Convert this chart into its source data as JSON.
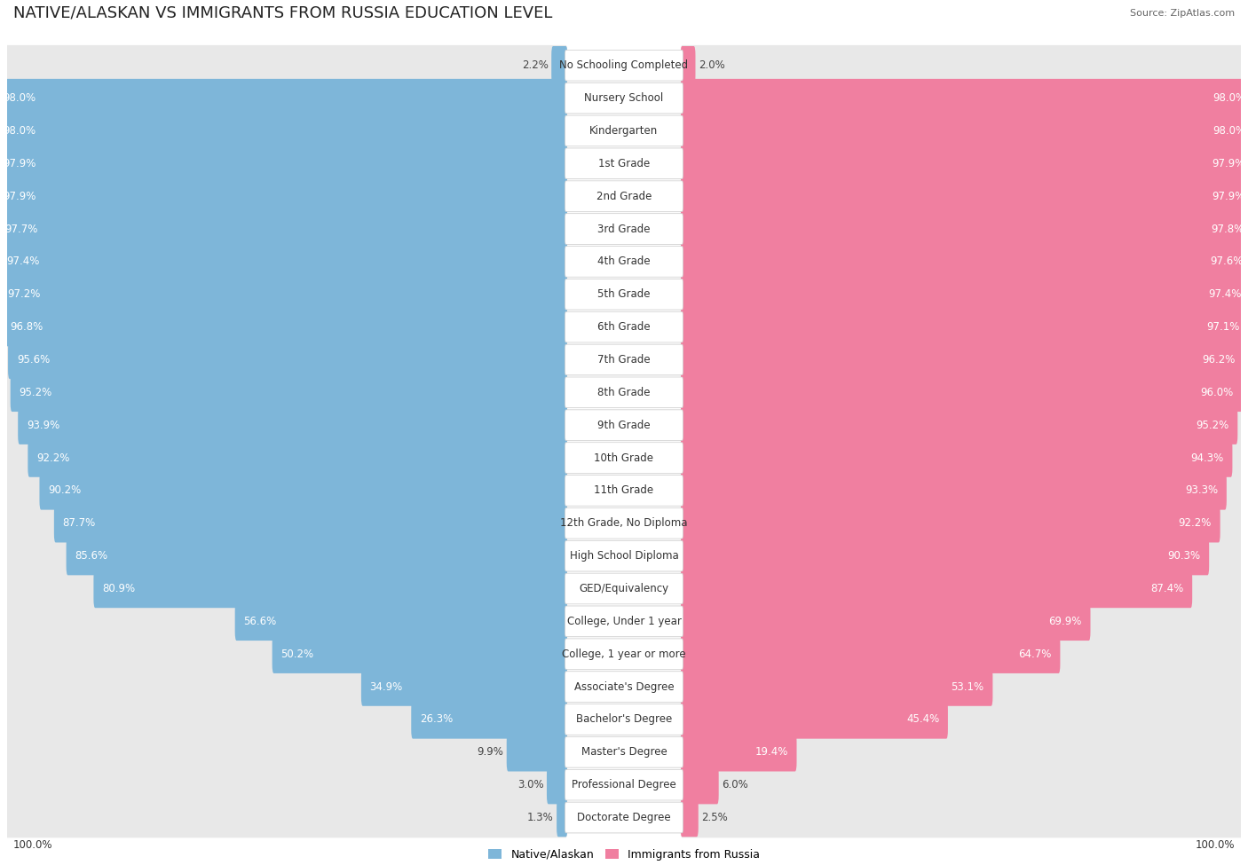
{
  "title": "NATIVE/ALASKAN VS IMMIGRANTS FROM RUSSIA EDUCATION LEVEL",
  "source": "Source: ZipAtlas.com",
  "categories": [
    "No Schooling Completed",
    "Nursery School",
    "Kindergarten",
    "1st Grade",
    "2nd Grade",
    "3rd Grade",
    "4th Grade",
    "5th Grade",
    "6th Grade",
    "7th Grade",
    "8th Grade",
    "9th Grade",
    "10th Grade",
    "11th Grade",
    "12th Grade, No Diploma",
    "High School Diploma",
    "GED/Equivalency",
    "College, Under 1 year",
    "College, 1 year or more",
    "Associate's Degree",
    "Bachelor's Degree",
    "Master's Degree",
    "Professional Degree",
    "Doctorate Degree"
  ],
  "native_values": [
    2.2,
    98.0,
    98.0,
    97.9,
    97.9,
    97.7,
    97.4,
    97.2,
    96.8,
    95.6,
    95.2,
    93.9,
    92.2,
    90.2,
    87.7,
    85.6,
    80.9,
    56.6,
    50.2,
    34.9,
    26.3,
    9.9,
    3.0,
    1.3
  ],
  "russia_values": [
    2.0,
    98.0,
    98.0,
    97.9,
    97.9,
    97.8,
    97.6,
    97.4,
    97.1,
    96.2,
    96.0,
    95.2,
    94.3,
    93.3,
    92.2,
    90.3,
    87.4,
    69.9,
    64.7,
    53.1,
    45.4,
    19.4,
    6.0,
    2.5
  ],
  "native_color": "#7eb6d9",
  "russia_color": "#f07fa0",
  "track_color": "#e8e8e8",
  "row_bg_even": "#ffffff",
  "row_bg_odd": "#f7f7f7",
  "title_fontsize": 13,
  "label_fontsize": 8.5,
  "value_fontsize": 8.5,
  "legend_native": "Native/Alaskan",
  "legend_russia": "Immigrants from Russia",
  "axis_label_left": "100.0%",
  "axis_label_right": "100.0%"
}
